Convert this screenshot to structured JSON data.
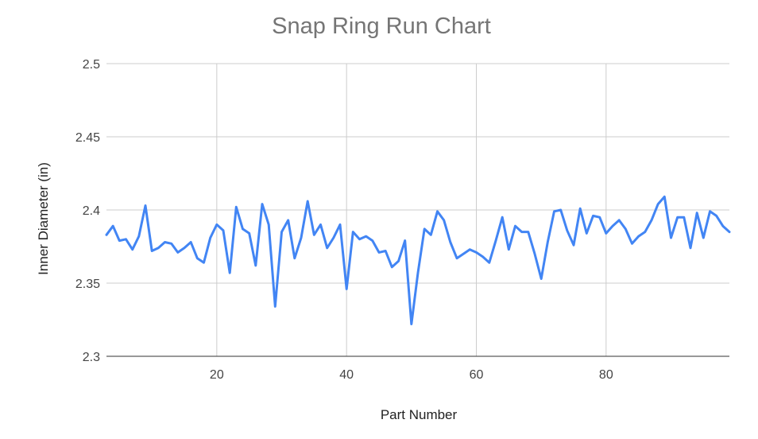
{
  "chart_data": {
    "type": "line",
    "title": "Snap Ring Run Chart",
    "xlabel": "Part Number",
    "ylabel": "Inner Diameter (in)",
    "xlim": [
      3,
      99
    ],
    "ylim": [
      2.3,
      2.5
    ],
    "x_ticks": [
      20,
      40,
      60,
      80
    ],
    "y_ticks": [
      2.3,
      2.35,
      2.4,
      2.45,
      2.5
    ],
    "x_tick_labels": [
      "20",
      "40",
      "60",
      "80"
    ],
    "y_tick_labels": [
      "2.3",
      "2.35",
      "2.4",
      "2.45",
      "2.5"
    ],
    "grid": true,
    "legend": "none",
    "line_color": "#4285f4",
    "series": [
      {
        "x": [
          3,
          4,
          5,
          6,
          7,
          8,
          9,
          10,
          11,
          12,
          13,
          14,
          15,
          16,
          17,
          18,
          19,
          20,
          21,
          22,
          23,
          24,
          25,
          26,
          27,
          28,
          29,
          30,
          31,
          32,
          33,
          34,
          35,
          36,
          37,
          38,
          39,
          40,
          41,
          42,
          43,
          44,
          45,
          46,
          47,
          48,
          49,
          50,
          51,
          52,
          53,
          54,
          55,
          56,
          57,
          58,
          59,
          60,
          61,
          62,
          63,
          64,
          65,
          66,
          67,
          68,
          69,
          70,
          71,
          72,
          73,
          74,
          75,
          76,
          77,
          78,
          79,
          80,
          81,
          82,
          83,
          84,
          85,
          86,
          87,
          88,
          89,
          90,
          91,
          92,
          93,
          94,
          95,
          96,
          97,
          98,
          99
        ],
        "y": [
          2.383,
          2.389,
          2.379,
          2.38,
          2.373,
          2.382,
          2.403,
          2.372,
          2.374,
          2.378,
          2.377,
          2.371,
          2.374,
          2.378,
          2.367,
          2.364,
          2.381,
          2.39,
          2.386,
          2.357,
          2.402,
          2.387,
          2.384,
          2.362,
          2.404,
          2.39,
          2.334,
          2.385,
          2.393,
          2.367,
          2.381,
          2.406,
          2.383,
          2.39,
          2.374,
          2.381,
          2.39,
          2.346,
          2.385,
          2.38,
          2.382,
          2.379,
          2.371,
          2.372,
          2.361,
          2.365,
          2.379,
          2.322,
          2.357,
          2.387,
          2.383,
          2.399,
          2.393,
          2.378,
          2.367,
          2.37,
          2.373,
          2.371,
          2.368,
          2.364,
          2.379,
          2.395,
          2.373,
          2.389,
          2.385,
          2.385,
          2.37,
          2.353,
          2.378,
          2.399,
          2.4,
          2.386,
          2.376,
          2.401,
          2.384,
          2.396,
          2.395,
          2.384,
          2.389,
          2.393,
          2.387,
          2.377,
          2.382,
          2.385,
          2.393,
          2.404,
          2.409,
          2.381,
          2.395,
          2.395,
          2.374,
          2.398,
          2.381,
          2.399,
          2.396,
          2.389,
          2.385
        ]
      }
    ]
  }
}
